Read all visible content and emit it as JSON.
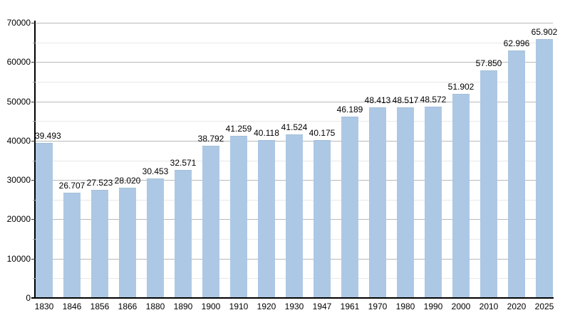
{
  "chart_data": {
    "type": "bar",
    "title": "",
    "xlabel": "",
    "ylabel": "",
    "categories": [
      "1830",
      "1846",
      "1856",
      "1866",
      "1880",
      "1890",
      "1900",
      "1910",
      "1920",
      "1930",
      "1947",
      "1961",
      "1970",
      "1980",
      "1990",
      "2000",
      "2010",
      "2020",
      "2025"
    ],
    "values": [
      39493,
      26707,
      27523,
      28020,
      30453,
      32571,
      38792,
      41259,
      40118,
      41524,
      40175,
      46189,
      48413,
      48517,
      48572,
      51902,
      57850,
      62996,
      65902
    ],
    "value_labels": [
      "39.493",
      "26.707",
      "27.523",
      "28.020",
      "30.453",
      "32.571",
      "38.792",
      "41.259",
      "40.118",
      "41.524",
      "40.175",
      "46.189",
      "48.413",
      "48.517",
      "48.572",
      "51.902",
      "57.850",
      "62.996",
      "65.902"
    ],
    "ylim": [
      0,
      70000
    ],
    "ytick_labels": [
      "0",
      "10000",
      "20000",
      "30000",
      "40000",
      "50000",
      "60000",
      "70000"
    ],
    "major_ytick_step": 10000,
    "minor_ytick_step": 5000,
    "grid": true,
    "legend": false,
    "colors": {
      "bar_fill": "#ADC8E4",
      "bar_edge": "#a2bedb",
      "major_grid": "#b9b9b9",
      "minor_grid": "#e8e8e8",
      "axis": "#000000",
      "text": "#000000",
      "background": "#ffffff"
    }
  }
}
